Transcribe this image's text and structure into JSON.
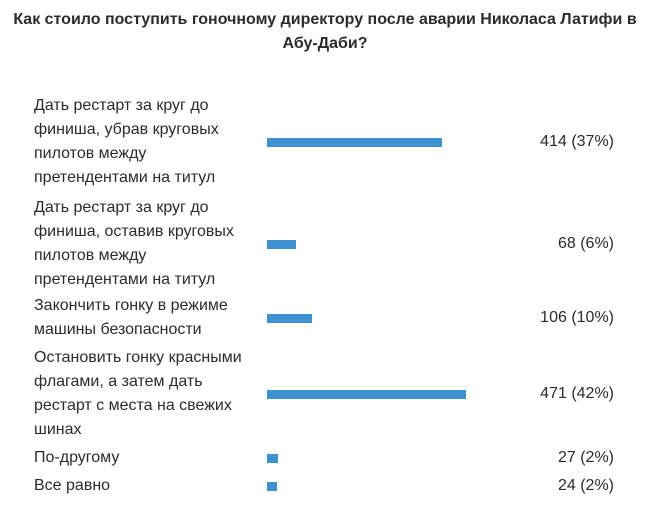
{
  "chart_data": {
    "type": "bar",
    "orientation": "horizontal",
    "title": "Как стоило поступить гоночному директору после аварии Николаса Латифи в Абу-Даби?",
    "bar_color": "#3d92cf",
    "categories": [
      "Дать рестарт за круг до финиша, убрав круговых пилотов между претендентами на титул",
      "Дать рестарт за круг до финиша, оставив круговых пилотов между претендентами на титул",
      "Закончить гонку в режиме машины безопасности",
      "Остановить гонку красными флагами, а затем дать рестарт с места на свежих шинах",
      "По-другому",
      "Все равно"
    ],
    "values": [
      414,
      68,
      106,
      471,
      27,
      24
    ],
    "value_labels": [
      "414 (37%)",
      "68 (6%)",
      "106 (10%)",
      "471 (42%)",
      "27 (2%)",
      "24 (2%)"
    ]
  }
}
